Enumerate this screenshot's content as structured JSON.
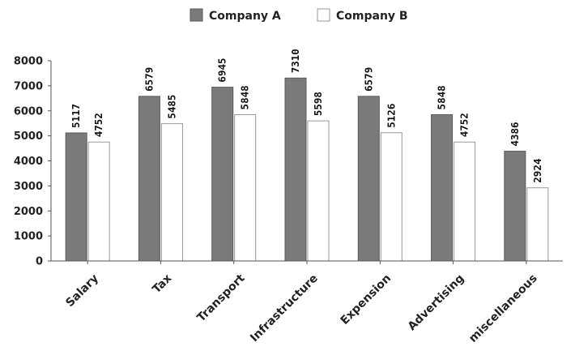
{
  "chart_data": {
    "type": "bar",
    "title": "",
    "xlabel": "",
    "ylabel": "",
    "categories": [
      "Salary",
      "Tax",
      "Transport",
      "Infrastructure",
      "Expension",
      "Advertising",
      "miscellaneous"
    ],
    "series": [
      {
        "name": "Company A",
        "color": "#7a7a7a",
        "values": [
          5117,
          6579,
          6945,
          7310,
          6579,
          5848,
          4386
        ]
      },
      {
        "name": "Company B",
        "color": "#ffffff",
        "values": [
          4752,
          5485,
          5848,
          5598,
          5126,
          4752,
          2924
        ]
      }
    ],
    "ylim": [
      0,
      8000
    ],
    "yticks": [
      0,
      1000,
      2000,
      3000,
      4000,
      5000,
      6000,
      7000,
      8000
    ],
    "grid": false,
    "legend_position": "top-center",
    "data_labels": true
  }
}
